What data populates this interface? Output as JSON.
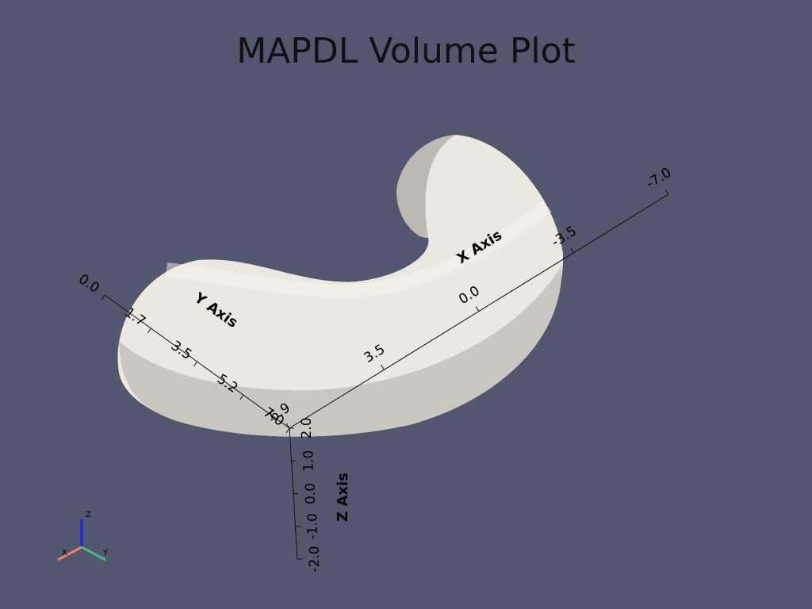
{
  "title": "MAPDL Volume Plot",
  "axes": {
    "x": {
      "label": "X Axis",
      "ticks": [
        "6.9",
        "3.5",
        "0.0",
        "-3.5",
        "-7.0"
      ]
    },
    "y": {
      "label": "Y Axis",
      "ticks": [
        "0.0",
        "1.7",
        "3.5",
        "5.2",
        "7.0"
      ]
    },
    "z": {
      "label": "Z Axis",
      "ticks": [
        "2.0",
        "1.0",
        "0.0",
        "-1.0",
        "-2.0"
      ]
    }
  },
  "orientation_widget": {
    "x": "X",
    "y": "Y",
    "z": "Z"
  }
}
